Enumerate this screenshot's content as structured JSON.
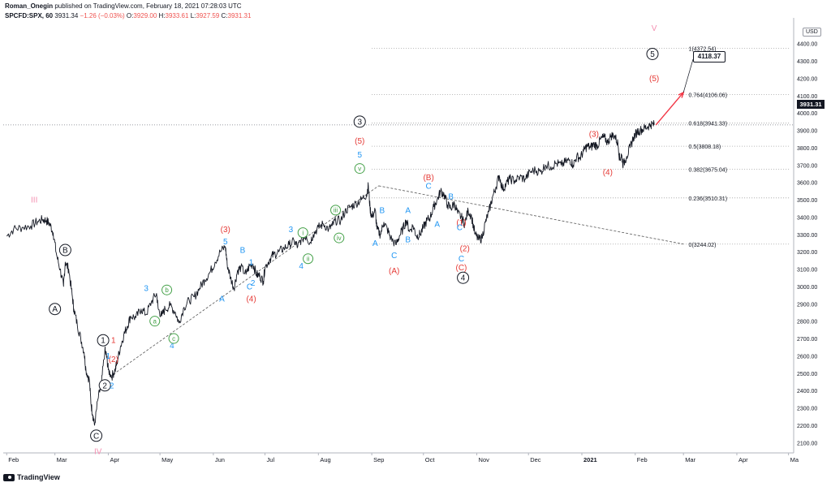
{
  "header": {
    "author": "Roman_Onegin",
    "published": " published on TradingView.com, February 18, 2021 07:28:03 UTC",
    "symbol": "SPCFD:SPX, 60",
    "last": "3931.34",
    "change": "−1.26 (−0.03%)",
    "o_label": "O:",
    "o_value": "3929.00",
    "h_label": "H:",
    "h_value": "3933.61",
    "l_label": "L:",
    "l_value": "3927.59",
    "c_label": "C:",
    "c_value": "3931.31"
  },
  "footer": {
    "brand": "TradingView"
  },
  "price_badge": "3931.31",
  "currency": "USD",
  "target_callout": "4118.37",
  "colors": {
    "price": "#131722",
    "black_wave": "#131722",
    "red_wave": "#e53935",
    "blue_wave": "#2196f3",
    "green_wave": "#43a047",
    "pink_wave": "#f48fb1",
    "target_arrow": "#f23645",
    "grid_dots": "#9e9e9e"
  },
  "chart_data": {
    "type": "line",
    "title": "SPCFD:SPX, 60",
    "ylim": [
      2050,
      4520
    ],
    "y_ticks": [
      2100,
      2200,
      2300,
      2400,
      2500,
      2600,
      2700,
      2800,
      2900,
      3000,
      3100,
      3200,
      3300,
      3400,
      3500,
      3600,
      3700,
      3800,
      3900,
      4000,
      4100,
      4200,
      4300,
      4400
    ],
    "x_ticks": [
      {
        "label": "Feb",
        "t": 0
      },
      {
        "label": "Mar",
        "t": 28
      },
      {
        "label": "Apr",
        "t": 59
      },
      {
        "label": "May",
        "t": 89
      },
      {
        "label": "Jun",
        "t": 120
      },
      {
        "label": "Jul",
        "t": 150
      },
      {
        "label": "Aug",
        "t": 181
      },
      {
        "label": "Sep",
        "t": 212
      },
      {
        "label": "Oct",
        "t": 242
      },
      {
        "label": "Nov",
        "t": 273
      },
      {
        "label": "Dec",
        "t": 303
      },
      {
        "label": "2021",
        "t": 334
      },
      {
        "label": "Feb",
        "t": 365
      },
      {
        "label": "Mar",
        "t": 393
      },
      {
        "label": "Apr",
        "t": 424
      },
      {
        "label": "Ma",
        "t": 454
      }
    ],
    "xlim": [
      -2,
      457
    ],
    "series": [
      {
        "name": "SPX 60m",
        "points": [
          [
            0,
            3290
          ],
          [
            4,
            3330
          ],
          [
            9,
            3340
          ],
          [
            14,
            3350
          ],
          [
            18,
            3375
          ],
          [
            21,
            3385
          ],
          [
            23,
            3380
          ],
          [
            25,
            3360
          ],
          [
            27,
            3310
          ],
          [
            29,
            3180
          ],
          [
            31,
            3100
          ],
          [
            33,
            3000
          ],
          [
            34,
            3140
          ],
          [
            36,
            3100
          ],
          [
            38,
            2950
          ],
          [
            39,
            2870
          ],
          [
            41,
            2780
          ],
          [
            43,
            2700
          ],
          [
            45,
            2620
          ],
          [
            46,
            2520
          ],
          [
            48,
            2460
          ],
          [
            49,
            2320
          ],
          [
            50,
            2260
          ],
          [
            51,
            2200
          ],
          [
            53,
            2350
          ],
          [
            55,
            2440
          ],
          [
            57,
            2630
          ],
          [
            58,
            2600
          ],
          [
            59,
            2520
          ],
          [
            61,
            2480
          ],
          [
            63,
            2520
          ],
          [
            64,
            2560
          ],
          [
            66,
            2650
          ],
          [
            68,
            2720
          ],
          [
            70,
            2770
          ],
          [
            72,
            2830
          ],
          [
            75,
            2820
          ],
          [
            78,
            2870
          ],
          [
            81,
            2840
          ],
          [
            84,
            2910
          ],
          [
            87,
            2960
          ],
          [
            88,
            2870
          ],
          [
            90,
            2830
          ],
          [
            92,
            2870
          ],
          [
            95,
            2890
          ],
          [
            98,
            2850
          ],
          [
            100,
            2790
          ],
          [
            103,
            2880
          ],
          [
            106,
            2920
          ],
          [
            109,
            2940
          ],
          [
            112,
            2990
          ],
          [
            115,
            3040
          ],
          [
            118,
            3080
          ],
          [
            121,
            3140
          ],
          [
            124,
            3200
          ],
          [
            127,
            3230
          ],
          [
            128,
            3130
          ],
          [
            130,
            3050
          ],
          [
            132,
            2990
          ],
          [
            134,
            3090
          ],
          [
            136,
            3110
          ],
          [
            139,
            3070
          ],
          [
            141,
            3120
          ],
          [
            143,
            3130
          ],
          [
            145,
            3070
          ],
          [
            147,
            3060
          ],
          [
            149,
            3030
          ],
          [
            150,
            3110
          ],
          [
            153,
            3160
          ],
          [
            155,
            3185
          ],
          [
            158,
            3200
          ],
          [
            161,
            3220
          ],
          [
            164,
            3240
          ],
          [
            167,
            3260
          ],
          [
            169,
            3230
          ],
          [
            171,
            3270
          ],
          [
            174,
            3290
          ],
          [
            176,
            3250
          ],
          [
            178,
            3300
          ],
          [
            181,
            3340
          ],
          [
            184,
            3360
          ],
          [
            187,
            3330
          ],
          [
            189,
            3350
          ],
          [
            191,
            3380
          ],
          [
            194,
            3380
          ],
          [
            197,
            3440
          ],
          [
            200,
            3460
          ],
          [
            203,
            3480
          ],
          [
            206,
            3500
          ],
          [
            209,
            3530
          ],
          [
            210,
            3580
          ],
          [
            211,
            3450
          ],
          [
            212,
            3400
          ],
          [
            214,
            3440
          ],
          [
            215,
            3330
          ],
          [
            217,
            3300
          ],
          [
            219,
            3370
          ],
          [
            221,
            3330
          ],
          [
            223,
            3280
          ],
          [
            226,
            3240
          ],
          [
            228,
            3290
          ],
          [
            230,
            3330
          ],
          [
            232,
            3380
          ],
          [
            234,
            3320
          ],
          [
            236,
            3350
          ],
          [
            238,
            3290
          ],
          [
            240,
            3300
          ],
          [
            242,
            3340
          ],
          [
            244,
            3380
          ],
          [
            246,
            3400
          ],
          [
            248,
            3460
          ],
          [
            250,
            3500
          ],
          [
            252,
            3550
          ],
          [
            254,
            3530
          ],
          [
            256,
            3470
          ],
          [
            258,
            3450
          ],
          [
            260,
            3480
          ],
          [
            262,
            3420
          ],
          [
            264,
            3400
          ],
          [
            266,
            3360
          ],
          [
            268,
            3440
          ],
          [
            270,
            3400
          ],
          [
            272,
            3300
          ],
          [
            274,
            3270
          ],
          [
            276,
            3280
          ],
          [
            278,
            3370
          ],
          [
            280,
            3430
          ],
          [
            282,
            3510
          ],
          [
            284,
            3570
          ],
          [
            286,
            3640
          ],
          [
            288,
            3560
          ],
          [
            290,
            3590
          ],
          [
            292,
            3620
          ],
          [
            295,
            3610
          ],
          [
            298,
            3630
          ],
          [
            301,
            3620
          ],
          [
            304,
            3660
          ],
          [
            307,
            3670
          ],
          [
            310,
            3660
          ],
          [
            313,
            3700
          ],
          [
            316,
            3690
          ],
          [
            319,
            3710
          ],
          [
            322,
            3700
          ],
          [
            325,
            3720
          ],
          [
            327,
            3730
          ],
          [
            329,
            3700
          ],
          [
            331,
            3750
          ],
          [
            333,
            3740
          ],
          [
            335,
            3780
          ],
          [
            337,
            3810
          ],
          [
            339,
            3800
          ],
          [
            341,
            3820
          ],
          [
            343,
            3810
          ],
          [
            345,
            3850
          ],
          [
            347,
            3860
          ],
          [
            349,
            3830
          ],
          [
            351,
            3870
          ],
          [
            353,
            3870
          ],
          [
            355,
            3820
          ],
          [
            356,
            3730
          ],
          [
            357,
            3760
          ],
          [
            358,
            3700
          ],
          [
            360,
            3750
          ],
          [
            362,
            3800
          ],
          [
            364,
            3860
          ],
          [
            366,
            3890
          ],
          [
            368,
            3900
          ],
          [
            370,
            3910
          ],
          [
            372,
            3920
          ],
          [
            374,
            3935
          ],
          [
            376,
            3931
          ]
        ]
      }
    ],
    "fibonacci": [
      {
        "label": "0.236(3510.31)",
        "value": 3510.31
      },
      {
        "label": "0.382(3675.04)",
        "value": 3675.04
      },
      {
        "label": "0.5(3808.18)",
        "value": 3808.18
      },
      {
        "label": "0.618(3941.33)",
        "value": 3941.33
      },
      {
        "label": "0.764(4106.06)",
        "value": 4106.06
      },
      {
        "label": "1(4372.54)",
        "value": 4372.54
      },
      {
        "label": "0(3244.02)",
        "value": 3244.02
      }
    ],
    "trendlines": [
      {
        "from": [
          60,
          2480
        ],
        "to": [
          216,
          3580
        ]
      },
      {
        "from": [
          216,
          3580
        ],
        "to": [
          393,
          3244
        ]
      }
    ],
    "target_arrow": {
      "from": [
        377,
        3931
      ],
      "to": [
        393,
        4118.37
      ],
      "label": "4118.37"
    },
    "wave_labels": [
      {
        "text": "III",
        "t": 16,
        "v": 3500,
        "style": "pink"
      },
      {
        "text": "IV",
        "t": 53,
        "v": 2050,
        "style": "pink"
      },
      {
        "text": "A",
        "t": 28,
        "v": 2870,
        "style": "circle"
      },
      {
        "text": "B",
        "t": 34,
        "v": 3210,
        "style": "circle"
      },
      {
        "text": "C",
        "t": 52,
        "v": 2140,
        "style": "circle"
      },
      {
        "text": "1",
        "t": 56,
        "v": 2690,
        "style": "circle"
      },
      {
        "text": "2",
        "t": 57,
        "v": 2430,
        "style": "circle"
      },
      {
        "text": "1",
        "t": 62,
        "v": 2690,
        "style": "red"
      },
      {
        "text": "(2)",
        "t": 62,
        "v": 2580,
        "style": "red"
      },
      {
        "text": "1",
        "t": 59,
        "v": 2600,
        "style": "blue"
      },
      {
        "text": "2",
        "t": 61,
        "v": 2430,
        "style": "blue"
      },
      {
        "text": "3",
        "t": 81,
        "v": 2990,
        "style": "blue"
      },
      {
        "text": "4",
        "t": 96,
        "v": 2660,
        "style": "blue"
      },
      {
        "text": "a",
        "t": 86,
        "v": 2800,
        "style": "green"
      },
      {
        "text": "b",
        "t": 93,
        "v": 2980,
        "style": "green"
      },
      {
        "text": "c",
        "t": 97,
        "v": 2700,
        "style": "green"
      },
      {
        "text": "(3)",
        "t": 127,
        "v": 3330,
        "style": "red"
      },
      {
        "text": "5",
        "t": 127,
        "v": 3260,
        "style": "blue"
      },
      {
        "text": "A",
        "t": 125,
        "v": 2930,
        "style": "blue"
      },
      {
        "text": "B",
        "t": 137,
        "v": 3210,
        "style": "blue"
      },
      {
        "text": "1",
        "t": 142,
        "v": 3140,
        "style": "blue"
      },
      {
        "text": "C",
        "t": 141,
        "v": 3000,
        "style": "blue"
      },
      {
        "text": "2",
        "t": 143,
        "v": 3020,
        "style": "blue"
      },
      {
        "text": "(4)",
        "t": 142,
        "v": 2930,
        "style": "red"
      },
      {
        "text": "3",
        "t": 165,
        "v": 3330,
        "style": "blue"
      },
      {
        "text": "4",
        "t": 171,
        "v": 3120,
        "style": "blue"
      },
      {
        "text": "i",
        "t": 172,
        "v": 3310,
        "style": "green"
      },
      {
        "text": "ii",
        "t": 175,
        "v": 3160,
        "style": "green"
      },
      {
        "text": "iii",
        "t": 191,
        "v": 3440,
        "style": "green"
      },
      {
        "text": "iv",
        "t": 193,
        "v": 3280,
        "style": "green"
      },
      {
        "text": "v",
        "t": 205,
        "v": 3680,
        "style": "green"
      },
      {
        "text": "5",
        "t": 205,
        "v": 3760,
        "style": "blue"
      },
      {
        "text": "(5)",
        "t": 205,
        "v": 3840,
        "style": "red"
      },
      {
        "text": "3",
        "t": 205,
        "v": 3950,
        "style": "circle"
      },
      {
        "text": "A",
        "t": 214,
        "v": 3250,
        "style": "blue"
      },
      {
        "text": "B",
        "t": 218,
        "v": 3440,
        "style": "blue"
      },
      {
        "text": "C",
        "t": 225,
        "v": 3180,
        "style": "blue"
      },
      {
        "text": "(A)",
        "t": 225,
        "v": 3090,
        "style": "red"
      },
      {
        "text": "B",
        "t": 233,
        "v": 3270,
        "style": "blue"
      },
      {
        "text": "A",
        "t": 233,
        "v": 3440,
        "style": "blue"
      },
      {
        "text": "A",
        "t": 250,
        "v": 3360,
        "style": "blue"
      },
      {
        "text": "(B)",
        "t": 245,
        "v": 3630,
        "style": "red"
      },
      {
        "text": "C",
        "t": 245,
        "v": 3580,
        "style": "blue"
      },
      {
        "text": "B",
        "t": 258,
        "v": 3520,
        "style": "blue"
      },
      {
        "text": "(1)",
        "t": 264,
        "v": 3370,
        "style": "red"
      },
      {
        "text": "C",
        "t": 263,
        "v": 3340,
        "style": "blue"
      },
      {
        "text": "(2)",
        "t": 266,
        "v": 3220,
        "style": "red"
      },
      {
        "text": "C",
        "t": 264,
        "v": 3160,
        "style": "blue"
      },
      {
        "text": "(C)",
        "t": 264,
        "v": 3110,
        "style": "red"
      },
      {
        "text": "4",
        "t": 265,
        "v": 3050,
        "style": "circle"
      },
      {
        "text": "(3)",
        "t": 341,
        "v": 3880,
        "style": "red"
      },
      {
        "text": "(4)",
        "t": 349,
        "v": 3660,
        "style": "red"
      },
      {
        "text": "5",
        "t": 375,
        "v": 4340,
        "style": "circle"
      },
      {
        "text": "(5)",
        "t": 376,
        "v": 4200,
        "style": "red"
      },
      {
        "text": "V",
        "t": 376,
        "v": 4490,
        "style": "pink"
      }
    ]
  }
}
